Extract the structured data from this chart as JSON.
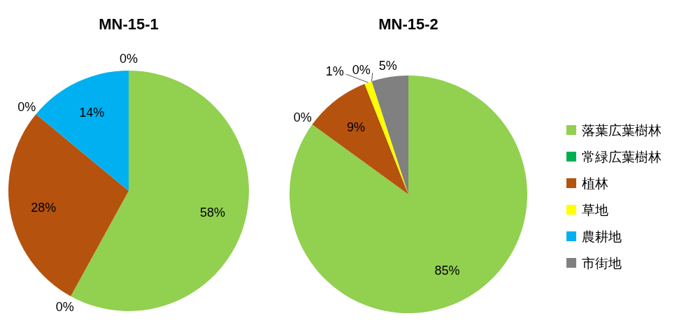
{
  "chart_data": [
    {
      "type": "pie",
      "title": "MN-15-1",
      "categories": [
        null,
        null,
        null,
        null,
        null,
        null
      ],
      "values": [
        58,
        0,
        28,
        0,
        14,
        0
      ],
      "colors": [
        "#92d050",
        "#00b050",
        "#b5520e",
        "#ffff00",
        "#00b0f0",
        "#808080"
      ],
      "value_labels": [
        "58%",
        "0%",
        "28%",
        "0%",
        "14%",
        "0%"
      ]
    },
    {
      "type": "pie",
      "title": "MN-15-2",
      "categories": [
        "落葉広葉樹林",
        "常緑広葉樹林",
        "植林",
        "草地",
        "農耕地",
        "市街地"
      ],
      "values": [
        85,
        0,
        9,
        1,
        0,
        5
      ],
      "colors": [
        "#92d050",
        "#00b050",
        "#b5520e",
        "#ffff00",
        "#00b0f0",
        "#808080"
      ],
      "value_labels": [
        "85%",
        "0%",
        "9%",
        "1%",
        "0%",
        "5%"
      ],
      "legend": "right"
    }
  ]
}
